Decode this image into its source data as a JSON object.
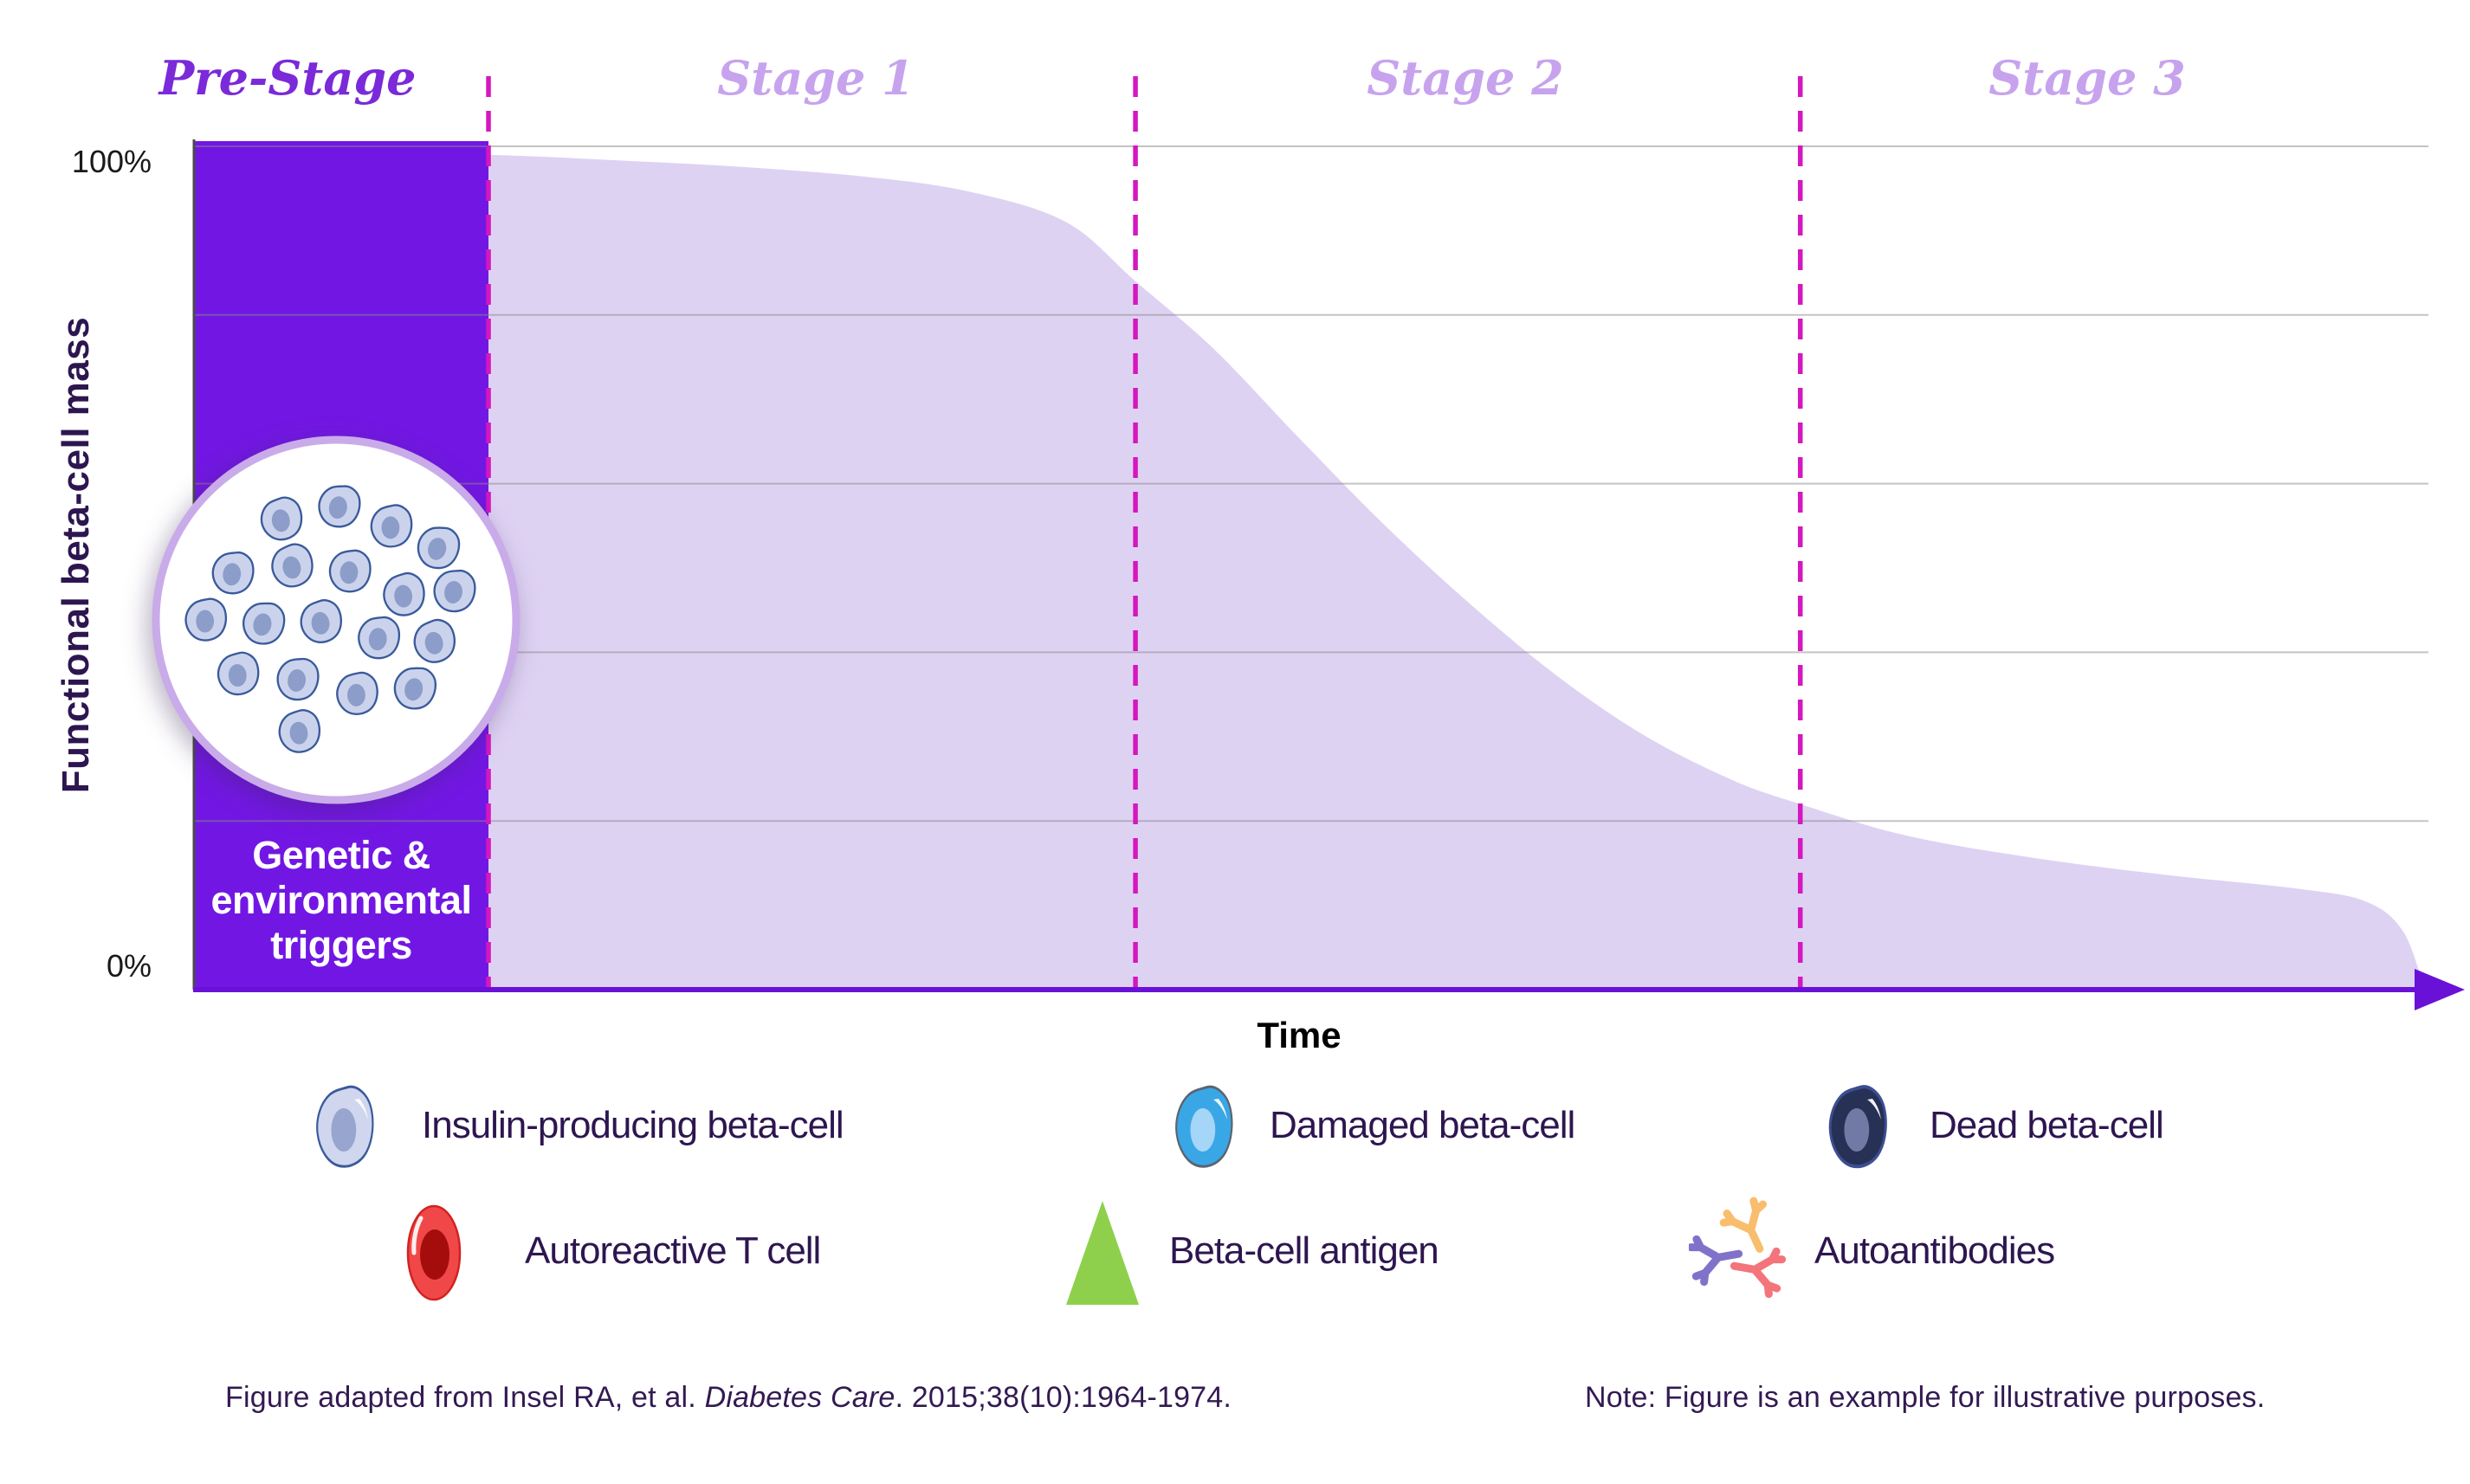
{
  "stages": {
    "pre": "Pre-Stage",
    "s1": "Stage 1",
    "s2": "Stage 2",
    "s3": "Stage 3"
  },
  "y_axis": {
    "title": "Functional beta-cell mass",
    "top_label": "100%",
    "bottom_label": "0%"
  },
  "x_axis": {
    "title": "Time"
  },
  "trigger_box": {
    "lines": [
      "Genetic &",
      "environmental",
      "triggers"
    ]
  },
  "beta_cell_cluster": {
    "count": 19
  },
  "legend": {
    "items": [
      {
        "icon": "insulin-producing-beta-cell-icon",
        "label": "Insulin-producing beta-cell"
      },
      {
        "icon": "damaged-beta-cell-icon",
        "label": "Damaged beta-cell"
      },
      {
        "icon": "dead-beta-cell-icon",
        "label": "Dead beta-cell"
      },
      {
        "icon": "autoreactive-t-cell-icon",
        "label": "Autoreactive T cell"
      },
      {
        "icon": "beta-cell-antigen-icon",
        "label": "Beta-cell antigen"
      },
      {
        "icon": "autoantibodies-icon",
        "label": "Autoantibodies"
      }
    ]
  },
  "footer": {
    "citation_prefix": "Figure adapted from Insel RA, et al. ",
    "citation_italic": "Diabetes Care",
    "citation_suffix": ". 2015;38(10):1964-1974.",
    "note": "Note: Figure is an example for illustrative purposes."
  },
  "colors": {
    "prestage_fill": "#7217e3",
    "area_fill": "#ded2f3",
    "stage_divider": "#d417be",
    "axis": "#6a11d8",
    "yaxis_line": "#4a4a4a",
    "gridline": "#8a8a8a",
    "prestage_title": "#7a2ad8",
    "stage_title": "#c7a3ee",
    "legend_text": "#2d1650",
    "footer_text": "#331a52",
    "circle_border": "#c9abe9",
    "cell_fill": "#cbd3ec",
    "cell_stroke": "#3a5a9b",
    "cell_nucleus": "#8d9dc9",
    "damaged_fill": "#39a7e6",
    "damaged_nucleus": "#a5d6f7",
    "dead_fill": "#273055",
    "dead_nucleus": "#717aa4",
    "tcell_fill": "#f04848",
    "tcell_nucleus": "#a50d0d",
    "antigen_fill": "#8ed04c",
    "antibody_purple": "#8172c9",
    "antibody_orange": "#f9bd6e",
    "antibody_salmon": "#f4747c"
  },
  "chart_data": {
    "type": "area",
    "title": "Decline of functional beta-cell mass across stages",
    "xlabel": "Time",
    "ylabel": "Functional beta-cell mass",
    "ylim": [
      0,
      100
    ],
    "yticks_labeled": [
      "0%",
      "100%"
    ],
    "gridlines_pct": [
      20,
      40,
      60,
      80,
      100
    ],
    "legend_position": "bottom",
    "stages": [
      "Pre-Stage",
      "Stage 1",
      "Stage 2",
      "Stage 3"
    ],
    "stage_boundaries_x": [
      13.2,
      42.2,
      72.0
    ],
    "highlight_region": {
      "label": "Genetic & environmental triggers",
      "x_range": [
        0,
        13.2
      ]
    },
    "series": [
      {
        "name": "Functional beta-cell mass (%)",
        "x": [
          0,
          13.2,
          18.5,
          24.3,
          30.1,
          34.8,
          39.1,
          42.2,
          45.7,
          49.5,
          53.4,
          57.3,
          61.2,
          65.1,
          69.0,
          72.0,
          76.7,
          82.5,
          88.4,
          94.2,
          97.3,
          99.0,
          100
        ],
        "y": [
          100,
          99,
          98.4,
          97.6,
          96.4,
          94.6,
          91,
          84,
          76,
          65.5,
          55,
          45.5,
          37,
          30,
          24.8,
          22,
          18.3,
          15.6,
          13.6,
          12,
          10.5,
          7,
          0
        ]
      }
    ]
  }
}
